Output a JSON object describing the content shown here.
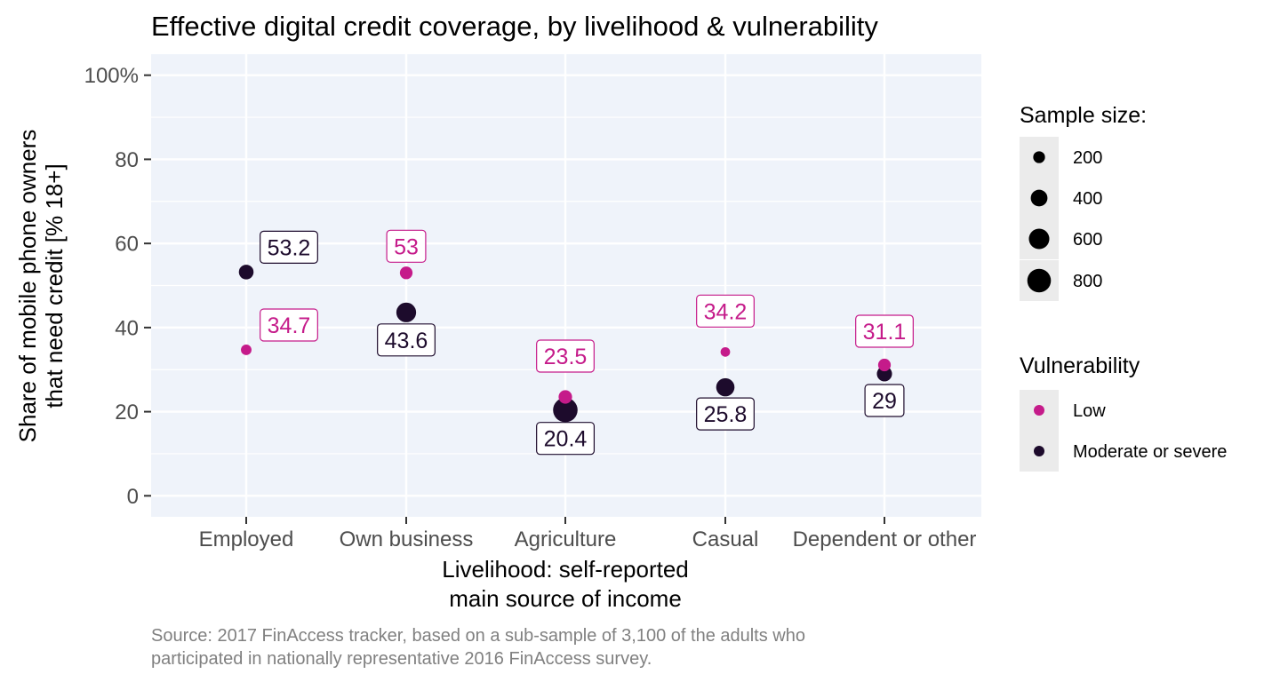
{
  "chart_data": {
    "type": "scatter",
    "title": "Effective digital credit coverage, by livelihood & vulnerability",
    "xlabel_lines": [
      "Livelihood: self-reported",
      "main source of income"
    ],
    "ylabel_lines": [
      "Share of mobile phone owners",
      "that need credit [% 18+]"
    ],
    "caption_lines": [
      "Source: 2017 FinAccess tracker, based on a sub-sample of 3,100 of the adults who",
      "participated in nationally representative 2016 FinAccess survey."
    ],
    "categories": [
      "Employed",
      "Own business",
      "Agriculture",
      "Casual",
      "Dependent or other"
    ],
    "ylim": [
      -5,
      105
    ],
    "y_ticks": [
      0,
      20,
      40,
      60,
      80,
      100
    ],
    "y_tick_labels": [
      "0",
      "20",
      "40",
      "60",
      "80",
      "100%"
    ],
    "grid": true,
    "legend_position": "right",
    "series": [
      {
        "name": "Low",
        "color": "#c51b8a",
        "values": [
          34.7,
          53,
          23.5,
          34.2,
          31.1
        ],
        "labels": [
          "34.7",
          "53",
          "23.5",
          "34.2",
          "31.1"
        ],
        "sizes": [
          160,
          230,
          260,
          130,
          230
        ]
      },
      {
        "name": "Moderate or severe",
        "color": "#1d0b2c",
        "values": [
          53.2,
          43.6,
          20.4,
          25.8,
          29
        ],
        "labels": [
          "53.2",
          "43.6",
          "20.4",
          "25.8",
          "29"
        ],
        "sizes": [
          310,
          560,
          860,
          480,
          330
        ]
      }
    ],
    "size_legend": {
      "title": "Sample size:",
      "breaks": [
        200,
        400,
        600,
        800
      ],
      "labels": [
        "200",
        "400",
        "600",
        "800"
      ]
    },
    "color_legend": {
      "title": "Vulnerability",
      "labels": [
        "Low",
        "Moderate or severe"
      ]
    },
    "colors": {
      "panel_background": "#eff3fa",
      "grid": "#ffffff",
      "axis_text": "#4d4d4d",
      "caption": "#808080"
    }
  }
}
